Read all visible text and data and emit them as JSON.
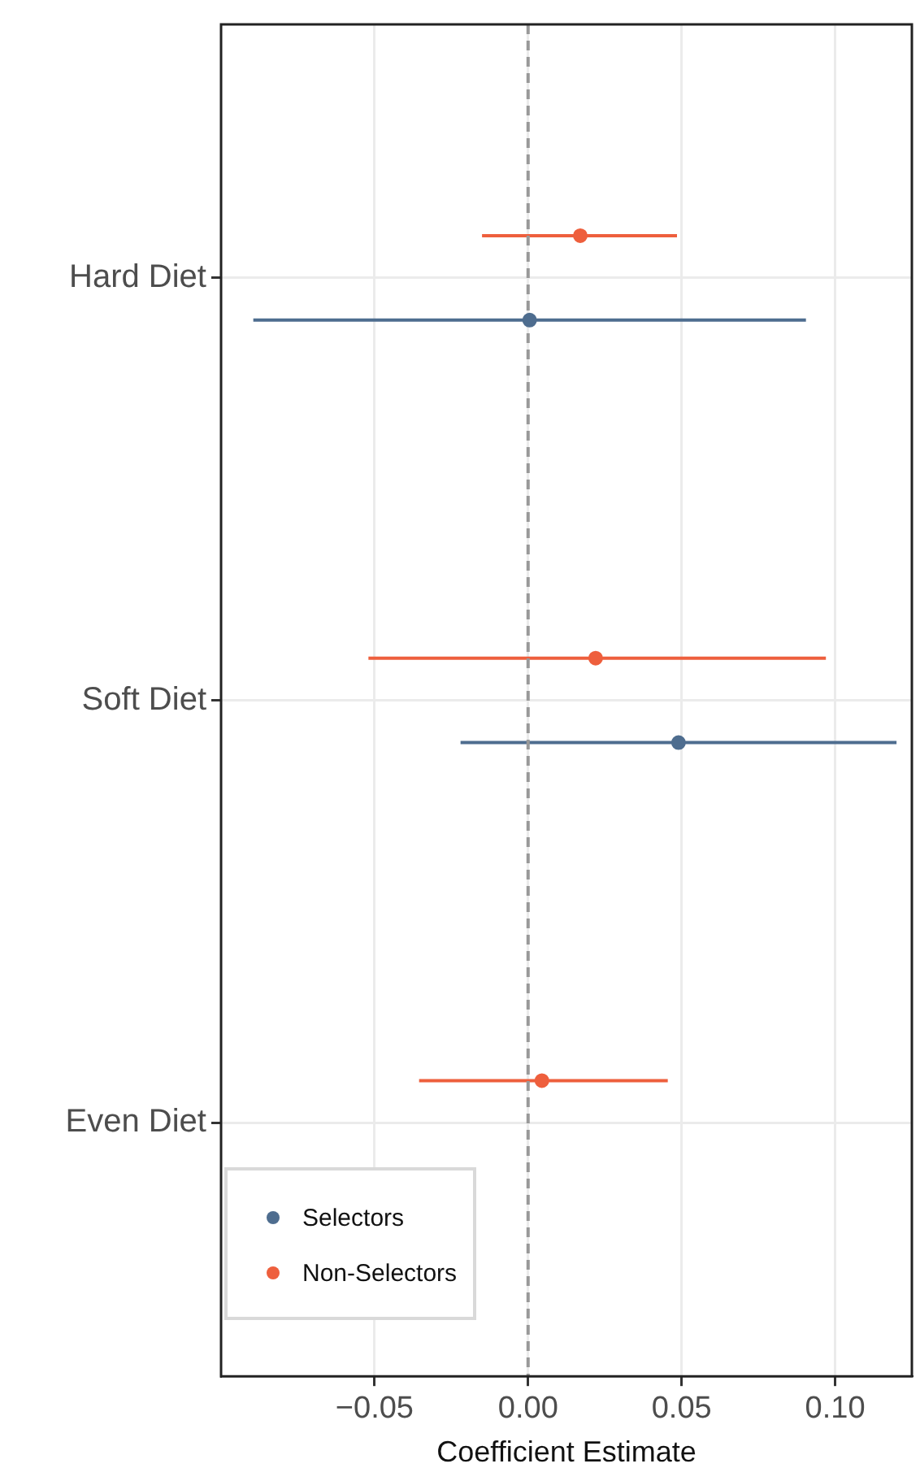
{
  "chart_data": {
    "type": "scatter",
    "orientation": "horizontal",
    "xlabel": "Coefficient Estimate",
    "categories": [
      "Hard Diet",
      "Soft Diet",
      "Even Diet"
    ],
    "series": [
      {
        "name": "Selectors",
        "color": "#4e6d8f",
        "values": [
          0.0005,
          0.049,
          null
        ],
        "errors": [
          [
            -0.0895,
            0.0905
          ],
          [
            -0.022,
            0.12
          ],
          null
        ]
      },
      {
        "name": "Non-Selectors",
        "color": "#ee5f3d",
        "values": [
          0.017,
          0.022,
          0.0045
        ],
        "errors": [
          [
            -0.015,
            0.0485
          ],
          [
            -0.052,
            0.097
          ],
          [
            -0.0355,
            0.0455
          ]
        ]
      }
    ],
    "xlim": [
      -0.1,
      0.125
    ],
    "xticks": [
      {
        "value": -0.05,
        "label": "−0.05"
      },
      {
        "value": 0,
        "label": "0.00"
      },
      {
        "value": 0.05,
        "label": "0.05"
      },
      {
        "value": 0.1,
        "label": "0.10"
      }
    ],
    "ref_lines": [
      {
        "axis": "x",
        "value": 0,
        "color": "#999999",
        "line_style": "dashed"
      }
    ],
    "grid": true,
    "legend": "bottom left",
    "marker": "circle"
  }
}
